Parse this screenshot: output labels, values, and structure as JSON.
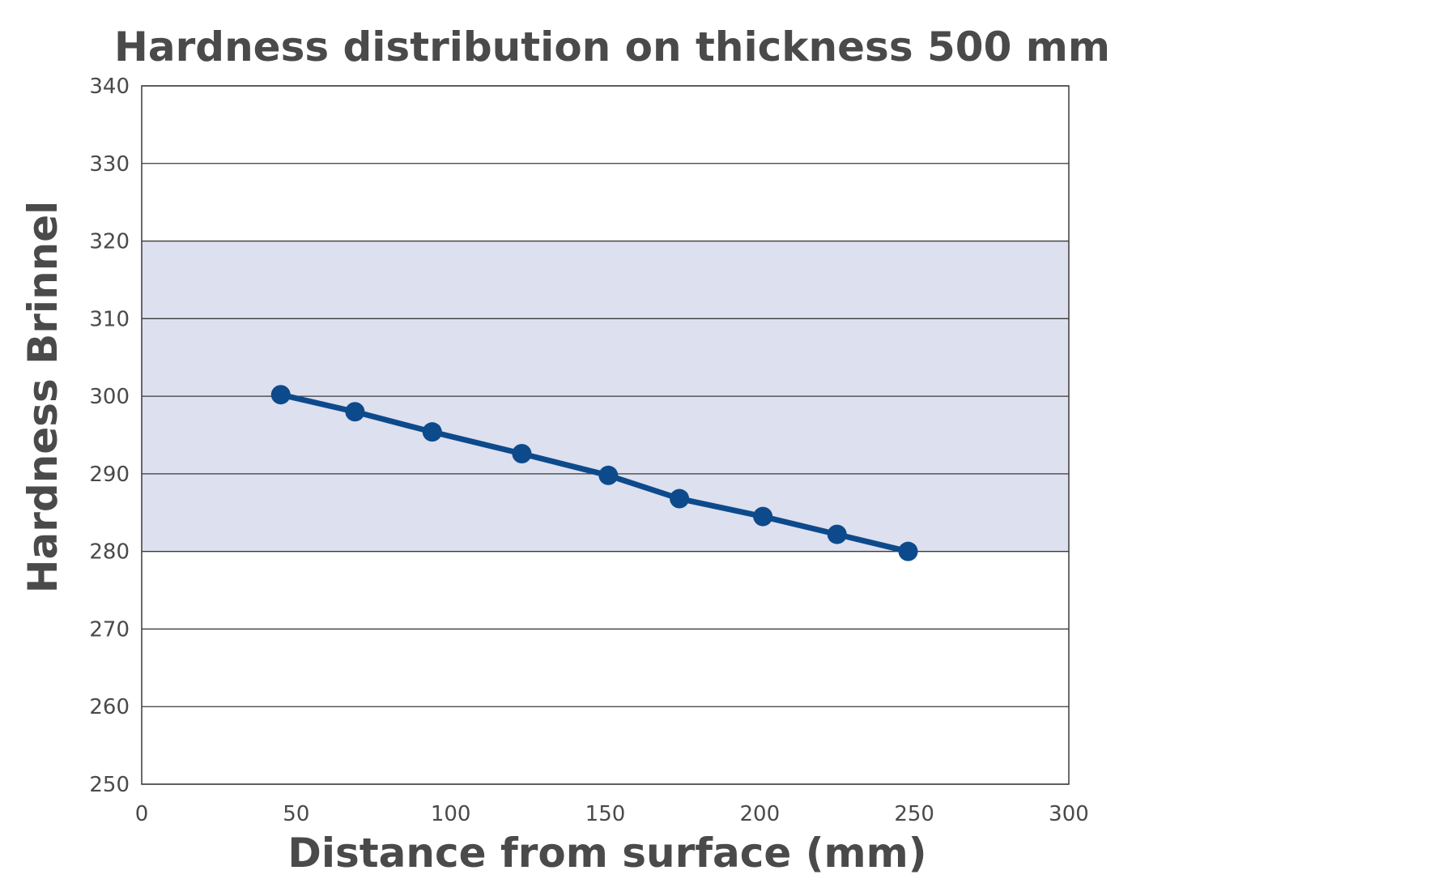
{
  "chart_data": {
    "type": "line",
    "title": "Hardness distribution on thickness 500 mm",
    "xlabel": "Distance from surface (mm)",
    "ylabel": "Hardness Brinnel",
    "xlim": [
      0,
      300
    ],
    "ylim": [
      250,
      340
    ],
    "xticks": [
      0,
      50,
      100,
      150,
      200,
      250,
      300
    ],
    "yticks": [
      250,
      260,
      270,
      280,
      290,
      300,
      310,
      320,
      330,
      340
    ],
    "grid": "horizontal",
    "legend": "none",
    "shaded_band": {
      "from": 280,
      "to": 320,
      "color": "#dde0ee"
    },
    "series": [
      {
        "color": "#0d4a8c",
        "x": [
          45,
          69,
          94,
          123,
          151,
          174,
          201,
          225,
          248
        ],
        "y": [
          300.2,
          298,
          295.4,
          292.6,
          289.8,
          286.8,
          284.5,
          282.2,
          280
        ]
      }
    ]
  }
}
